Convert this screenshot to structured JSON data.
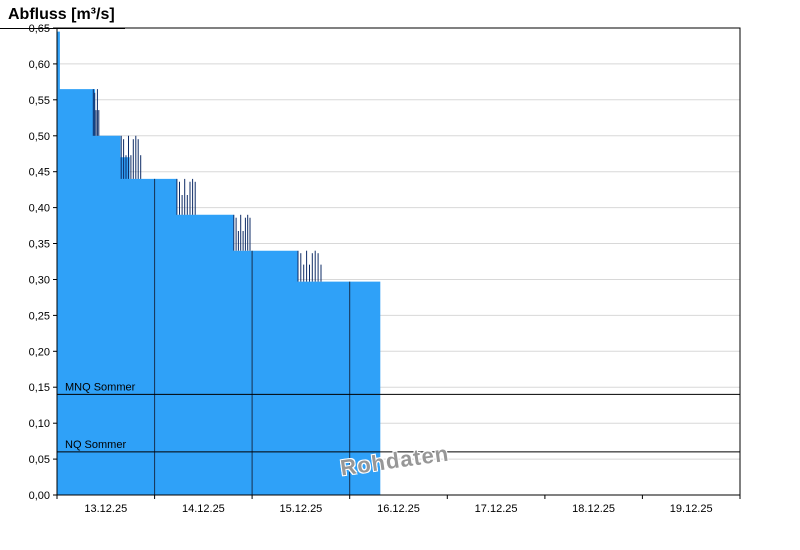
{
  "title": "Abfluss [m³/s]",
  "watermark": "Rohdaten",
  "colors": {
    "fill": "#2FA1F8",
    "fill_edge": "#1565C0",
    "spike": "#0D2B66",
    "day_line": "#16304F",
    "grid": "#D8D8D8",
    "ref_line": "#000000",
    "axis": "#000000",
    "watermark": "#979797"
  },
  "y_axis": {
    "min": 0,
    "max": 0.65,
    "step": 0.05,
    "tick_labels": [
      "0,00",
      "0,05",
      "0,10",
      "0,15",
      "0,20",
      "0,25",
      "0,30",
      "0,35",
      "0,40",
      "0,45",
      "0,50",
      "0,55",
      "0,60",
      "0,65"
    ]
  },
  "x_axis": {
    "days": 7,
    "labels": [
      "13.12.25",
      "14.12.25",
      "15.12.25",
      "16.12.25",
      "17.12.25",
      "18.12.25",
      "19.12.25"
    ]
  },
  "ref_lines": [
    {
      "label": "MNQ Sommer",
      "value": 0.14
    },
    {
      "label": "NQ Sommer",
      "value": 0.06
    }
  ],
  "chart_data": {
    "type": "area",
    "title": "Abfluss [m³/s]",
    "ylabel": "Abfluss [m³/s]",
    "ylim": [
      0,
      0.65
    ],
    "x_origin": "13.12.25 00:00",
    "x_unit": "days",
    "series_name": "Rohdaten",
    "steps": [
      {
        "from": 0.0,
        "to": 0.03,
        "v": 0.645
      },
      {
        "from": 0.03,
        "to": 0.39,
        "v": 0.565
      },
      {
        "from": 0.39,
        "to": 0.65,
        "v": 0.5
      },
      {
        "from": 0.65,
        "to": 0.745,
        "v": 0.47
      },
      {
        "from": 0.745,
        "to": 1.23,
        "v": 0.44
      },
      {
        "from": 1.23,
        "to": 1.81,
        "v": 0.39
      },
      {
        "from": 1.81,
        "to": 2.465,
        "v": 0.34
      },
      {
        "from": 2.465,
        "to": 3.313,
        "v": 0.297
      }
    ],
    "noise": [
      {
        "from": 0.365,
        "to": 0.435,
        "low": 0.5,
        "high": 0.565,
        "n": 5
      },
      {
        "from": 0.645,
        "to": 0.87,
        "low": 0.44,
        "high": 0.5,
        "n": 9
      },
      {
        "from": 1.215,
        "to": 1.43,
        "low": 0.39,
        "high": 0.44,
        "n": 8
      },
      {
        "from": 1.8,
        "to": 1.99,
        "low": 0.34,
        "high": 0.39,
        "n": 8
      },
      {
        "from": 2.455,
        "to": 2.72,
        "low": 0.297,
        "high": 0.34,
        "n": 9
      }
    ],
    "day_boundary_lines": [
      1,
      2,
      3
    ],
    "legend_position": "none",
    "grid": "horizontal"
  }
}
